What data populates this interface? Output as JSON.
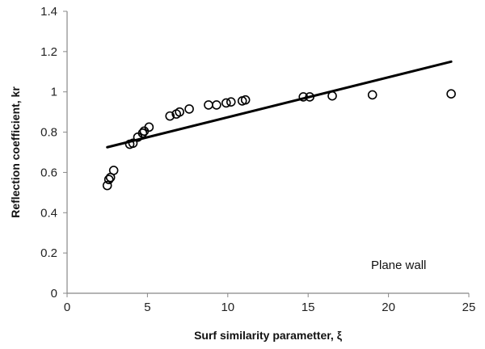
{
  "chart_data": {
    "type": "scatter",
    "xlabel": "Surf similarity parametter, ξ",
    "ylabel": "Reflection coefficient, kr",
    "xlim": [
      0,
      25
    ],
    "ylim": [
      0,
      1.4
    ],
    "xticks": [
      "0",
      "5",
      "10",
      "15",
      "20",
      "25"
    ],
    "yticks": [
      "0",
      "0.2",
      "0.4",
      "0.6",
      "0.8",
      "1",
      "1.2",
      "1.4"
    ],
    "grid": false,
    "annotation": "Plane wall",
    "series": [
      {
        "marker": "open-circle",
        "color": "#000000",
        "points": [
          {
            "x": 2.5,
            "y": 0.535
          },
          {
            "x": 2.6,
            "y": 0.565
          },
          {
            "x": 2.7,
            "y": 0.575
          },
          {
            "x": 2.9,
            "y": 0.61
          },
          {
            "x": 3.9,
            "y": 0.74
          },
          {
            "x": 4.1,
            "y": 0.745
          },
          {
            "x": 4.4,
            "y": 0.775
          },
          {
            "x": 4.7,
            "y": 0.795
          },
          {
            "x": 4.8,
            "y": 0.805
          },
          {
            "x": 5.1,
            "y": 0.825
          },
          {
            "x": 6.4,
            "y": 0.88
          },
          {
            "x": 6.8,
            "y": 0.89
          },
          {
            "x": 7.0,
            "y": 0.9
          },
          {
            "x": 7.6,
            "y": 0.915
          },
          {
            "x": 8.8,
            "y": 0.935
          },
          {
            "x": 9.3,
            "y": 0.935
          },
          {
            "x": 9.9,
            "y": 0.945
          },
          {
            "x": 10.2,
            "y": 0.95
          },
          {
            "x": 10.9,
            "y": 0.955
          },
          {
            "x": 11.1,
            "y": 0.96
          },
          {
            "x": 14.7,
            "y": 0.975
          },
          {
            "x": 15.1,
            "y": 0.975
          },
          {
            "x": 16.5,
            "y": 0.98
          },
          {
            "x": 19.0,
            "y": 0.985
          },
          {
            "x": 23.9,
            "y": 0.99
          }
        ]
      },
      {
        "type": "line",
        "color": "#000000",
        "points": [
          {
            "x": 2.5,
            "y": 0.725
          },
          {
            "x": 23.9,
            "y": 1.15
          }
        ]
      }
    ]
  }
}
